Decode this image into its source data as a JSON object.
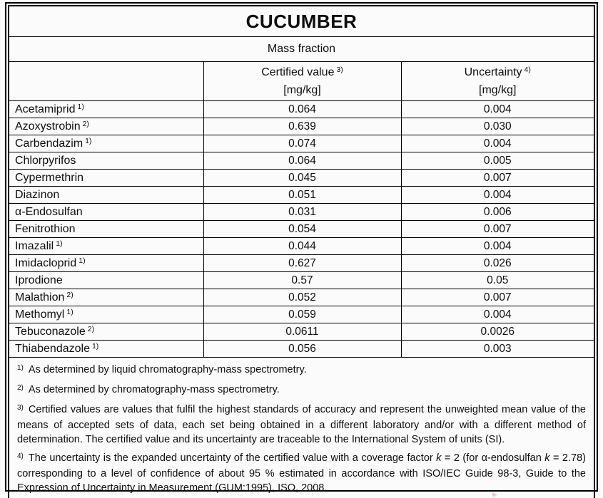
{
  "title": "CUCUMBER",
  "subtitle": "Mass fraction",
  "header": {
    "analyte_label": "",
    "certified": {
      "label": "Certified value",
      "marker": "3)",
      "unit": "[mg/kg]"
    },
    "uncertainty": {
      "label": "Uncertainty",
      "marker": "4)",
      "unit": "[mg/kg]"
    }
  },
  "rows": [
    {
      "name": "Acetamiprid",
      "marker": "1)",
      "certified": "0.064",
      "uncertainty": "0.004"
    },
    {
      "name": "Azoxystrobin",
      "marker": "2)",
      "certified": "0.639",
      "uncertainty": "0.030"
    },
    {
      "name": "Carbendazim",
      "marker": "1)",
      "certified": "0.074",
      "uncertainty": "0.004"
    },
    {
      "name": "Chlorpyrifos",
      "marker": "",
      "certified": "0.064",
      "uncertainty": "0.005"
    },
    {
      "name": "Cypermethrin",
      "marker": "",
      "certified": "0.045",
      "uncertainty": "0.007"
    },
    {
      "name": "Diazinon",
      "marker": "",
      "certified": "0.051",
      "uncertainty": "0.004"
    },
    {
      "name": "α-Endosulfan",
      "marker": "",
      "certified": "0.031",
      "uncertainty": "0.006"
    },
    {
      "name": "Fenitrothion",
      "marker": "",
      "certified": "0.054",
      "uncertainty": "0.007"
    },
    {
      "name": "Imazalil",
      "marker": "1)",
      "certified": "0.044",
      "uncertainty": "0.004"
    },
    {
      "name": "Imidacloprid",
      "marker": "1)",
      "certified": "0.627",
      "uncertainty": "0.026"
    },
    {
      "name": "Iprodione",
      "marker": "",
      "certified": "0.57",
      "uncertainty": "0.05"
    },
    {
      "name": "Malathion",
      "marker": "2)",
      "certified": "0.052",
      "uncertainty": "0.007"
    },
    {
      "name": "Methomyl",
      "marker": "1)",
      "certified": "0.059",
      "uncertainty": "0.004"
    },
    {
      "name": "Tebuconazole",
      "marker": "2)",
      "certified": "0.0611",
      "uncertainty": "0.0026"
    },
    {
      "name": "Thiabendazole",
      "marker": "1)",
      "certified": "0.056",
      "uncertainty": "0.003"
    }
  ],
  "footnotes": [
    {
      "marker": "1)",
      "justify": false,
      "parts": [
        {
          "t": "As determined by liquid chromatography-mass spectrometry.",
          "s": "normal"
        }
      ]
    },
    {
      "marker": "2)",
      "justify": false,
      "parts": [
        {
          "t": "As determined by chromatography-mass spectrometry.",
          "s": "normal"
        }
      ]
    },
    {
      "marker": "3)",
      "justify": true,
      "parts": [
        {
          "t": "Certified values are values that fulfil the highest standards of accuracy and represent the unweighted mean value of the means of accepted sets of data, each set being obtained in a different laboratory and/or with a different method of determination. The certified value and its uncertainty are traceable to the International System of units (SI).",
          "s": "normal"
        }
      ]
    },
    {
      "marker": "4)",
      "justify": true,
      "parts": [
        {
          "t": "The uncertainty is the expanded uncertainty of the certified value with a coverage factor ",
          "s": "normal"
        },
        {
          "t": "k",
          "s": "italic"
        },
        {
          "t": " = 2 (for α-endosulfan ",
          "s": "normal"
        },
        {
          "t": "k",
          "s": "italic"
        },
        {
          "t": " = 2.78) corresponding to a level of confidence of about 95 % estimated in accordance with ISO/IEC Guide 98-3, Guide to the Expression of Uncertainty in Measurement (GUM:1995), ISO, 2008.",
          "s": "normal"
        }
      ]
    }
  ],
  "colors": {
    "border": "#000000",
    "text": "#0e0e0e",
    "background": "#fbfbfb"
  }
}
